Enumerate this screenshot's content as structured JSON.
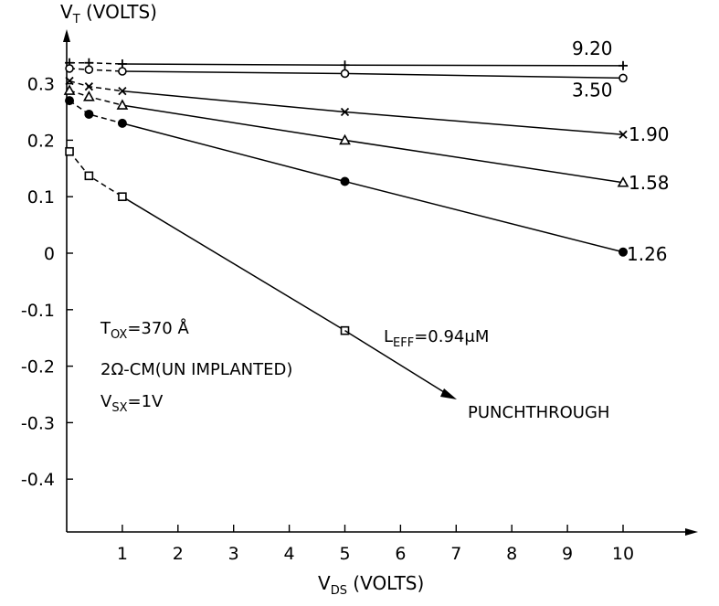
{
  "chart_data": {
    "type": "line",
    "ylabel": {
      "main": "V",
      "sub": "T",
      "rest": " (VOLTS)"
    },
    "xlabel": {
      "main": "V",
      "sub": "DS",
      "rest": " (VOLTS)"
    },
    "xlim": [
      0,
      11
    ],
    "ylim": [
      -0.5,
      0.38
    ],
    "x_ticks": [
      1,
      2,
      3,
      4,
      5,
      6,
      7,
      8,
      9,
      10
    ],
    "y_ticks": [
      0.3,
      0.2,
      0.1,
      0,
      -0.1,
      -0.2,
      -0.3,
      -0.4
    ],
    "y_tick_labels": [
      "0.3",
      "0.2",
      "0.1",
      "0",
      "-0.1",
      "-0.2",
      "-0.3",
      "-0.4"
    ],
    "series": [
      {
        "name": "9.20",
        "marker": "plus",
        "x": [
          0.05,
          0.4,
          1,
          5,
          10
        ],
        "y": [
          0.337,
          0.337,
          0.335,
          0.333,
          0.332
        ]
      },
      {
        "name": "3.50",
        "marker": "circle",
        "x": [
          0.05,
          0.4,
          1,
          5,
          10
        ],
        "y": [
          0.327,
          0.325,
          0.322,
          0.318,
          0.31
        ]
      },
      {
        "name": "1.90",
        "marker": "x",
        "x": [
          0.05,
          0.4,
          1,
          5,
          10
        ],
        "y": [
          0.305,
          0.295,
          0.287,
          0.25,
          0.21
        ]
      },
      {
        "name": "1.58",
        "marker": "triangle",
        "x": [
          0.05,
          0.4,
          1,
          5,
          10
        ],
        "y": [
          0.288,
          0.277,
          0.262,
          0.2,
          0.125
        ]
      },
      {
        "name": "1.26",
        "marker": "dot",
        "x": [
          0.05,
          0.4,
          1,
          5,
          10
        ],
        "y": [
          0.27,
          0.246,
          0.23,
          0.127,
          0.002
        ]
      },
      {
        "name": "",
        "marker": "square",
        "x": [
          0.05,
          0.4,
          1,
          5
        ],
        "y": [
          0.18,
          0.137,
          0.1,
          -0.137
        ]
      }
    ],
    "annotations": {
      "tox": {
        "main": "T",
        "sub": "OX",
        "rest": "=370 Å"
      },
      "resistivity": "2Ω-CM(UN IMPLANTED)",
      "vsx": {
        "main": "V",
        "sub": "SX",
        "rest": "=1V"
      },
      "leff": {
        "main": "L",
        "sub": "EFF",
        "rest": "=0.94μM"
      },
      "punchthrough": "PUNCHTHROUGH"
    }
  }
}
